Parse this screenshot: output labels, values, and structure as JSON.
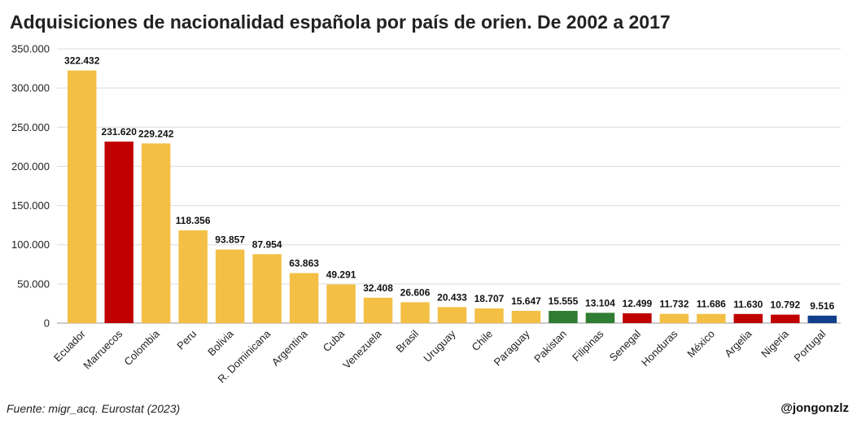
{
  "title": "Adquisiciones de nacionalidad española por país de orien. De 2002 a 2017",
  "footer": {
    "source": "Fuente: migr_acq. Eurostat (2023)",
    "credit": "@jongonzlz"
  },
  "colors": {
    "default": "#F3BF45",
    "africa": "#C00000",
    "asia": "#2E7D32",
    "europe": "#123F8C"
  },
  "chart_data": {
    "type": "bar",
    "title": "Adquisiciones de nacionalidad española por país de orien. De 2002 a 2017",
    "xlabel": "",
    "ylabel": "",
    "ylim": [
      0,
      350000
    ],
    "yticks": [
      0,
      50000,
      100000,
      150000,
      200000,
      250000,
      300000,
      350000
    ],
    "ytick_labels": [
      "0",
      "50.000",
      "100.000",
      "150.000",
      "200.000",
      "250.000",
      "300.000",
      "350.000"
    ],
    "grid": true,
    "categories": [
      "Ecuador",
      "Marruecos",
      "Colombia",
      "Peru",
      "Bolivia",
      "R. Dominicana",
      "Argentina",
      "Cuba",
      "Venezuela",
      "Brasil",
      "Uruguay",
      "Chile",
      "Paraguay",
      "Pakistan",
      "Filipinas",
      "Senegal",
      "Honduras",
      "México",
      "Argelia",
      "Nigeria",
      "Portugal"
    ],
    "values": [
      322432,
      231620,
      229242,
      118356,
      93857,
      87954,
      63863,
      49291,
      32408,
      26606,
      20433,
      18707,
      15647,
      15555,
      13104,
      12499,
      11732,
      11686,
      11630,
      10792,
      9516
    ],
    "value_labels": [
      "322.432",
      "231.620",
      "229.242",
      "118.356",
      "93.857",
      "87.954",
      "63.863",
      "49.291",
      "32.408",
      "26.606",
      "20.433",
      "18.707",
      "15.647",
      "15.555",
      "13.104",
      "12.499",
      "11.732",
      "11.686",
      "11.630",
      "10.792",
      "9.516"
    ],
    "bar_colors": [
      "#F3BF45",
      "#C00000",
      "#F3BF45",
      "#F3BF45",
      "#F3BF45",
      "#F3BF45",
      "#F3BF45",
      "#F3BF45",
      "#F3BF45",
      "#F3BF45",
      "#F3BF45",
      "#F3BF45",
      "#F3BF45",
      "#2E7D32",
      "#2E7D32",
      "#C00000",
      "#F3BF45",
      "#F3BF45",
      "#C00000",
      "#C00000",
      "#123F8C"
    ]
  }
}
